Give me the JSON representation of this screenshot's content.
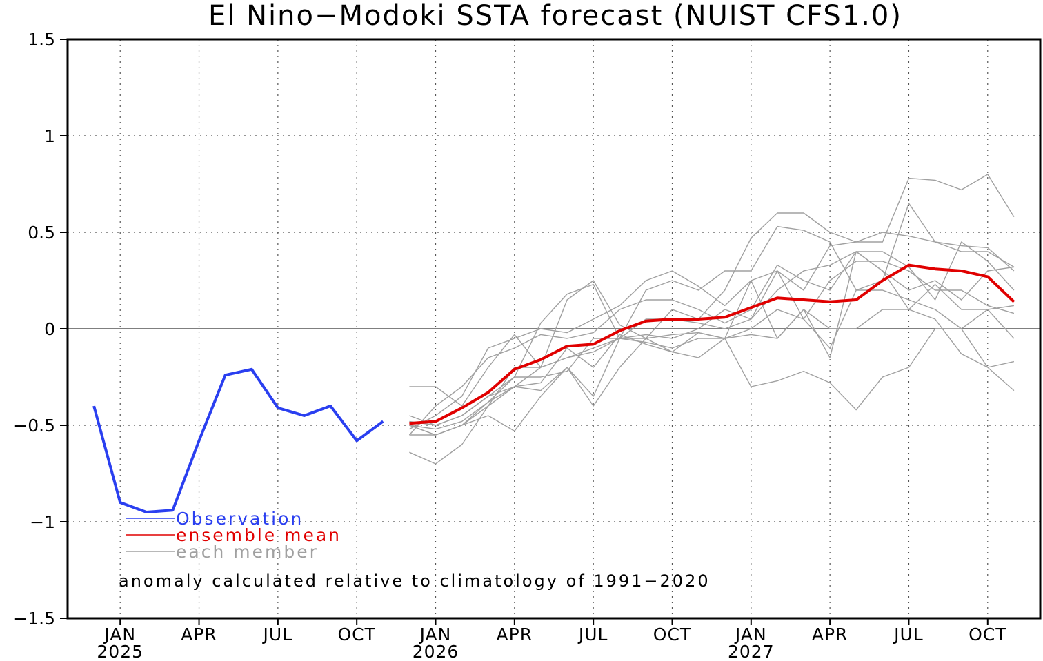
{
  "chart_data": {
    "type": "line",
    "title": "El Nino−Modoki SSTA forecast (NUIST CFS1.0)",
    "xlabel": "",
    "ylabel": "",
    "ylim": [
      -1.5,
      1.5
    ],
    "yticks": [
      "1.5",
      "1",
      "0.5",
      "0",
      "−0.5",
      "−1",
      "−1.5"
    ],
    "ytick_values": [
      1.5,
      1,
      0.5,
      0,
      -0.5,
      -1,
      -1.5
    ],
    "xlim": [
      "2024-11",
      "2027-12"
    ],
    "xticks": [
      {
        "month": "2025-01",
        "label": "JAN",
        "year": "2025"
      },
      {
        "month": "2025-04",
        "label": "APR",
        "year": ""
      },
      {
        "month": "2025-07",
        "label": "JUL",
        "year": ""
      },
      {
        "month": "2025-10",
        "label": "OCT",
        "year": ""
      },
      {
        "month": "2026-01",
        "label": "JAN",
        "year": "2026"
      },
      {
        "month": "2026-04",
        "label": "APR",
        "year": ""
      },
      {
        "month": "2026-07",
        "label": "JUL",
        "year": ""
      },
      {
        "month": "2026-10",
        "label": "OCT",
        "year": ""
      },
      {
        "month": "2027-01",
        "label": "JAN",
        "year": "2027"
      },
      {
        "month": "2027-04",
        "label": "APR",
        "year": ""
      },
      {
        "month": "2027-07",
        "label": "JUL",
        "year": ""
      },
      {
        "month": "2027-10",
        "label": "OCT",
        "year": ""
      }
    ],
    "grid": true,
    "legend_position": "bottom-left",
    "colors": {
      "observation": "#2a3ff0",
      "ensemble_mean": "#e00000",
      "member": "#a0a0a0",
      "grid": "#555555",
      "zero_line": "#555555"
    },
    "series": [
      {
        "name": "Observation",
        "color": "#2a3ff0",
        "x": [
          "2024-12",
          "2025-01",
          "2025-02",
          "2025-03",
          "2025-04",
          "2025-05",
          "2025-06",
          "2025-07",
          "2025-08",
          "2025-09",
          "2025-10",
          "2025-11"
        ],
        "values": [
          -0.4,
          -0.9,
          -0.95,
          -0.94,
          -0.58,
          -0.24,
          -0.21,
          -0.41,
          -0.45,
          -0.4,
          -0.58,
          -0.48
        ]
      },
      {
        "name": "ensemble mean",
        "color": "#e00000",
        "x": [
          "2025-12",
          "2026-01",
          "2026-02",
          "2026-03",
          "2026-04",
          "2026-05",
          "2026-06",
          "2026-07",
          "2026-08",
          "2026-09",
          "2026-10",
          "2026-11",
          "2026-12",
          "2027-01",
          "2027-02",
          "2027-03",
          "2027-04",
          "2027-05",
          "2027-06",
          "2027-07",
          "2027-08",
          "2027-09",
          "2027-10",
          "2027-11"
        ],
        "values": [
          -0.49,
          -0.48,
          -0.41,
          -0.33,
          -0.21,
          -0.16,
          -0.09,
          -0.08,
          -0.01,
          0.04,
          0.05,
          0.05,
          0.06,
          0.11,
          0.16,
          0.15,
          0.14,
          0.15,
          0.25,
          0.33,
          0.31,
          0.3,
          0.27,
          0.14
        ]
      }
    ],
    "members": {
      "name": "each member",
      "color": "#a0a0a0",
      "x": [
        "2025-12",
        "2026-01",
        "2026-02",
        "2026-03",
        "2026-04",
        "2026-05",
        "2026-06",
        "2026-07",
        "2026-08",
        "2026-09",
        "2026-10",
        "2026-11",
        "2026-12",
        "2027-01",
        "2027-02",
        "2027-03",
        "2027-04",
        "2027-05",
        "2027-06",
        "2027-07",
        "2027-08",
        "2027-09",
        "2027-10",
        "2027-11"
      ],
      "series": [
        [
          -0.3,
          -0.3,
          -0.4,
          -0.2,
          -0.03,
          -0.2,
          0.15,
          0.25,
          0.02,
          -0.05,
          0.1,
          0.05,
          0.2,
          0.47,
          0.6,
          0.6,
          0.5,
          0.45,
          0.45,
          0.78,
          0.77,
          0.72,
          0.8,
          0.58
        ],
        [
          -0.48,
          -0.5,
          -0.45,
          -0.35,
          -0.25,
          0.03,
          0.18,
          0.23,
          -0.05,
          0.2,
          0.25,
          0.2,
          0.3,
          0.3,
          0.53,
          0.51,
          0.45,
          0.2,
          0.25,
          0.65,
          0.45,
          0.4,
          0.4,
          0.32
        ],
        [
          -0.52,
          -0.45,
          -0.35,
          -0.1,
          -0.05,
          0.0,
          -0.02,
          0.05,
          0.12,
          0.25,
          0.3,
          0.22,
          0.12,
          0.25,
          0.3,
          0.2,
          0.43,
          0.45,
          0.5,
          0.48,
          0.45,
          0.43,
          0.42,
          0.3
        ],
        [
          -0.55,
          -0.4,
          -0.3,
          -0.15,
          -0.1,
          -0.03,
          -0.05,
          -0.02,
          0.1,
          0.15,
          0.15,
          0.1,
          0.03,
          0.1,
          0.33,
          0.25,
          0.2,
          0.4,
          0.4,
          0.32,
          0.15,
          0.45,
          0.35,
          0.2
        ],
        [
          -0.5,
          -0.55,
          -0.5,
          -0.4,
          -0.2,
          -0.2,
          -0.15,
          -0.1,
          -0.05,
          -0.03,
          -0.05,
          0.0,
          0.1,
          0.05,
          0.2,
          0.3,
          0.33,
          0.4,
          0.3,
          0.2,
          0.25,
          0.15,
          0.3,
          0.32
        ],
        [
          -0.45,
          -0.5,
          -0.45,
          -0.35,
          -0.3,
          -0.2,
          -0.15,
          -0.12,
          -0.05,
          -0.07,
          -0.1,
          -0.05,
          -0.05,
          0.0,
          0.1,
          0.05,
          0.25,
          0.35,
          0.35,
          0.3,
          0.2,
          0.2,
          0.12,
          0.08
        ],
        [
          -0.64,
          -0.7,
          -0.6,
          -0.4,
          -0.3,
          -0.32,
          -0.2,
          -0.4,
          -0.2,
          -0.05,
          -0.03,
          -0.02,
          -0.05,
          -0.03,
          -0.05,
          0.1,
          0.0,
          0.0,
          0.1,
          0.1,
          0.23,
          0.1,
          0.1,
          -0.05
        ],
        [
          -0.5,
          -0.55,
          -0.5,
          -0.45,
          -0.53,
          -0.35,
          -0.2,
          -0.35,
          -0.05,
          0.05,
          0.05,
          0.03,
          0.0,
          0.05,
          0.3,
          0.05,
          -0.1,
          0.2,
          0.2,
          0.15,
          0.1,
          0.0,
          -0.2,
          -0.17
        ],
        [
          -0.55,
          -0.55,
          -0.5,
          -0.38,
          -0.3,
          -0.28,
          -0.1,
          -0.2,
          -0.03,
          -0.08,
          -0.12,
          -0.15,
          -0.05,
          0.25,
          -0.05,
          0.1,
          -0.15,
          0.4,
          0.3,
          0.1,
          0.05,
          -0.13,
          -0.2,
          -0.32
        ],
        [
          -0.5,
          -0.52,
          -0.48,
          -0.38,
          -0.25,
          -0.25,
          -0.22,
          -0.05,
          -0.05,
          -0.05,
          -0.12,
          -0.02,
          -0.05,
          -0.3,
          -0.27,
          -0.22,
          -0.28,
          -0.42,
          -0.25,
          -0.2,
          0.0,
          0.0,
          0.1,
          0.12
        ]
      ]
    },
    "legend": [
      {
        "key": "observation",
        "label": "Observation"
      },
      {
        "key": "ensemble_mean",
        "label": "ensemble mean"
      },
      {
        "key": "member",
        "label": "each member"
      }
    ],
    "annotation": "anomaly calculated relative to climatology of 1991−2020"
  }
}
